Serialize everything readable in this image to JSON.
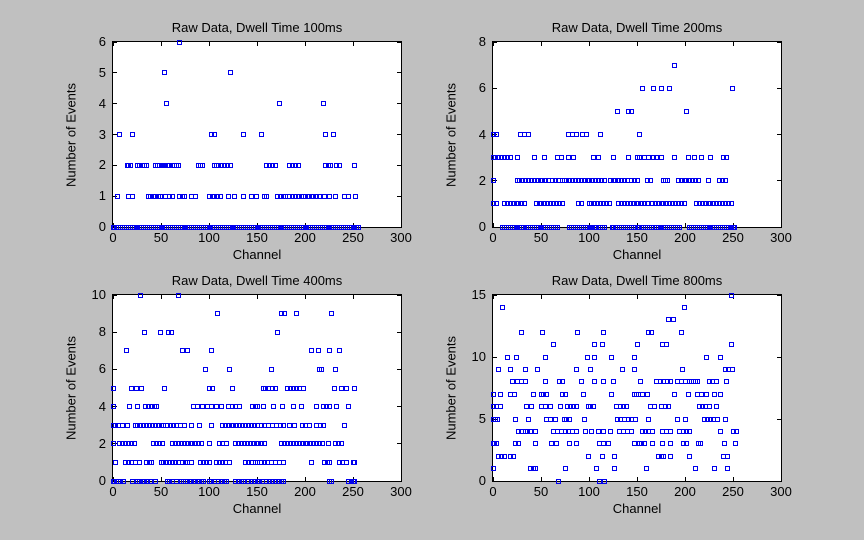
{
  "figure": {
    "background_color": "#c0c0c0",
    "plot_background": "#ffffff",
    "axis_color": "#000000",
    "marker_color": "#0000ee",
    "marker_shape": "open-square"
  },
  "chart_data": [
    {
      "type": "scatter",
      "title": "Raw Data, Dwell Time 100ms",
      "xlabel": "Channel",
      "ylabel": "Number of Events",
      "xlim": [
        0,
        300
      ],
      "ylim": [
        0,
        6
      ],
      "xticks": [
        0,
        50,
        100,
        150,
        200,
        250,
        300
      ],
      "yticks": [
        0,
        1,
        2,
        3,
        4,
        5,
        6
      ],
      "grid": false,
      "legend": null,
      "points_by_level": {
        "0": [
          0,
          2,
          4,
          6,
          8,
          10,
          12,
          14,
          16,
          18,
          20,
          22,
          24,
          26,
          28,
          30,
          32,
          34,
          36,
          38,
          40,
          42,
          44,
          46,
          48,
          50,
          52,
          54,
          56,
          58,
          60,
          62,
          64,
          66,
          68,
          70,
          72,
          74,
          76,
          78,
          80,
          82,
          84,
          86,
          88,
          90,
          92,
          94,
          96,
          98,
          100,
          102,
          104,
          106,
          108,
          110,
          112,
          114,
          116,
          118,
          120,
          122,
          124,
          126,
          128,
          130,
          132,
          134,
          136,
          138,
          140,
          142,
          144,
          146,
          148,
          150,
          152,
          154,
          156,
          158,
          160,
          162,
          164,
          166,
          168,
          170,
          172,
          174,
          176,
          178,
          180,
          182,
          184,
          186,
          188,
          190,
          192,
          194,
          196,
          198,
          200,
          202,
          204,
          206,
          208,
          210,
          212,
          214,
          216,
          218,
          220,
          222,
          224,
          226,
          228,
          230,
          232,
          234,
          236,
          238,
          240,
          242,
          244,
          246,
          248,
          250,
          252,
          254,
          256
        ],
        "1": [
          5,
          16,
          20,
          37,
          39,
          42,
          44,
          47,
          49,
          55,
          59,
          62,
          69,
          72,
          74,
          82,
          86,
          101,
          104,
          106,
          109,
          112,
          120,
          127,
          136,
          144,
          149,
          158,
          160,
          171,
          174,
          178,
          180,
          184,
          187,
          190,
          193,
          196,
          198,
          201,
          204,
          207,
          209,
          212,
          215,
          220,
          225,
          232,
          241,
          245,
          253
        ],
        "2": [
          15,
          16,
          18,
          25,
          28,
          31,
          33,
          35,
          44,
          46,
          48,
          50,
          52,
          54,
          57,
          59,
          62,
          64,
          66,
          68,
          89,
          91,
          93,
          106,
          108,
          110,
          113,
          116,
          119,
          122,
          160,
          163,
          166,
          169,
          184,
          187,
          190,
          193,
          221,
          224,
          227,
          233,
          236,
          252
        ],
        "3": [
          7,
          20,
          103,
          106,
          136,
          155,
          221,
          230
        ],
        "4": [
          56,
          173,
          219
        ],
        "5": [
          54,
          122
        ],
        "6": [
          69
        ]
      }
    },
    {
      "type": "scatter",
      "title": "Raw Data, Dwell Time 200ms",
      "xlabel": "Channel",
      "ylabel": "Number of Events",
      "xlim": [
        0,
        300
      ],
      "ylim": [
        0,
        8
      ],
      "xticks": [
        0,
        50,
        100,
        150,
        200,
        250,
        300
      ],
      "yticks": [
        0,
        2,
        4,
        6,
        8
      ],
      "grid": false,
      "legend": null,
      "points_by_level": {
        "0": [
          10,
          12,
          14,
          16,
          18,
          20,
          22,
          24,
          26,
          28,
          30,
          32,
          35,
          37,
          39,
          41,
          43,
          45,
          47,
          49,
          51,
          53,
          55,
          57,
          59,
          61,
          63,
          65,
          67,
          80,
          82,
          84,
          86,
          88,
          90,
          92,
          94,
          96,
          98,
          100,
          102,
          104,
          107,
          110,
          112,
          114,
          116,
          124,
          126,
          128,
          130,
          132,
          134,
          136,
          138,
          140,
          142,
          144,
          146,
          148,
          150,
          152,
          155,
          157,
          159,
          161,
          163,
          165,
          170,
          172,
          174,
          176,
          178,
          180,
          182,
          184,
          186,
          188,
          190,
          192,
          194,
          205,
          207,
          209,
          211,
          213,
          215,
          217,
          219,
          221,
          223,
          225,
          227,
          229,
          231,
          233,
          235,
          237,
          239,
          241,
          243,
          245,
          248,
          250,
          252
        ],
        "1": [
          1,
          4,
          12,
          15,
          18,
          21,
          24,
          27,
          30,
          33,
          45,
          48,
          51,
          54,
          57,
          60,
          63,
          66,
          69,
          72,
          89,
          92,
          100,
          103,
          106,
          109,
          112,
          115,
          118,
          121,
          131,
          134,
          137,
          140,
          143,
          146,
          149,
          152,
          155,
          158,
          161,
          166,
          169,
          172,
          175,
          178,
          181,
          184,
          187,
          190,
          193,
          196,
          199,
          212,
          215,
          218,
          221,
          224,
          227,
          230,
          233,
          236,
          239,
          242,
          245,
          248
        ],
        "2": [
          0,
          25,
          28,
          31,
          34,
          37,
          40,
          43,
          46,
          49,
          52,
          55,
          58,
          62,
          65,
          68,
          72,
          74,
          77,
          80,
          83,
          86,
          89,
          92,
          95,
          98,
          101,
          104,
          107,
          110,
          113,
          116,
          122,
          125,
          128,
          131,
          134,
          137,
          140,
          144,
          147,
          150,
          161,
          164,
          178,
          180,
          182,
          193,
          196,
          199,
          202,
          205,
          208,
          211,
          214,
          224,
          236,
          239,
          242
        ],
        "3": [
          0,
          3,
          6,
          9,
          12,
          15,
          18,
          26,
          43,
          54,
          67,
          71,
          79,
          84,
          105,
          110,
          125,
          141,
          150,
          153,
          158,
          162,
          167,
          170,
          175,
          189,
          204,
          210,
          217,
          227,
          240,
          243
        ],
        "4": [
          0,
          4,
          29,
          33,
          37,
          79,
          83,
          87,
          93,
          97,
          112,
          153
        ],
        "5": [
          130,
          141,
          144,
          202
        ],
        "6": [
          156,
          167,
          176,
          184,
          249
        ],
        "7": [
          189
        ]
      }
    },
    {
      "type": "scatter",
      "title": "Raw Data, Dwell Time 400ms",
      "xlabel": "Channel",
      "ylabel": "Number of Events",
      "xlim": [
        0,
        300
      ],
      "ylim": [
        0,
        10
      ],
      "xticks": [
        0,
        50,
        100,
        150,
        200,
        250,
        300
      ],
      "yticks": [
        0,
        2,
        4,
        6,
        8,
        10
      ],
      "grid": false,
      "legend": null,
      "points_by_level": {
        "0": [
          0,
          2,
          4,
          6,
          8,
          11,
          20,
          26,
          28,
          31,
          33,
          36,
          39,
          44,
          57,
          59,
          62,
          66,
          71,
          73,
          75,
          78,
          81,
          84,
          86,
          89,
          92,
          94,
          100,
          103,
          106,
          110,
          113,
          116,
          118,
          128,
          131,
          134,
          136,
          141,
          144,
          147,
          150,
          153,
          156,
          160,
          163,
          166,
          169,
          172,
          175,
          178,
          226,
          228,
          245,
          248,
          250,
          252
        ],
        "1": [
          3,
          13,
          16,
          19,
          23,
          28,
          35,
          38,
          40,
          50,
          53,
          56,
          59,
          62,
          65,
          68,
          72,
          75,
          78,
          82,
          91,
          94,
          97,
          100,
          108,
          111,
          114,
          117,
          121,
          138,
          141,
          144,
          148,
          151,
          155,
          158,
          161,
          165,
          169,
          173,
          178,
          207,
          220,
          223,
          226,
          236,
          239,
          243,
          250,
          252
        ],
        "2": [
          0,
          7,
          10,
          13,
          16,
          19,
          22,
          42,
          45,
          48,
          52,
          62,
          65,
          68,
          71,
          74,
          78,
          81,
          83,
          86,
          89,
          92,
          100,
          111,
          114,
          118,
          128,
          131,
          134,
          137,
          140,
          143,
          146,
          149,
          152,
          155,
          158,
          176,
          179,
          182,
          185,
          188,
          191,
          194,
          197,
          200,
          203,
          206,
          209,
          212,
          215,
          218,
          224,
          232,
          235,
          238
        ],
        "3": [
          0,
          3,
          6,
          10,
          15,
          23,
          26,
          29,
          32,
          35,
          38,
          41,
          44,
          47,
          50,
          53,
          57,
          60,
          63,
          66,
          70,
          74,
          82,
          90,
          103,
          114,
          117,
          120,
          123,
          126,
          129,
          132,
          135,
          138,
          141,
          144,
          147,
          151,
          155,
          158,
          162,
          166,
          170,
          174,
          178,
          184,
          189,
          197,
          201,
          205,
          212,
          216,
          219,
          241
        ],
        "4": [
          1,
          17,
          25,
          34,
          37,
          40,
          43,
          45,
          84,
          88,
          93,
          98,
          103,
          108,
          113,
          120,
          124,
          128,
          132,
          145,
          148,
          151,
          157,
          167,
          177,
          188,
          196,
          212,
          219,
          222,
          226,
          233,
          245
        ],
        "5": [
          0,
          19,
          24,
          30,
          54,
          100,
          104,
          124,
          157,
          159,
          162,
          166,
          169,
          182,
          185,
          188,
          191,
          194,
          198,
          231,
          238,
          243,
          252
        ],
        "6": [
          96,
          121,
          165,
          215,
          217,
          232
        ],
        "7": [
          14,
          72,
          78,
          103,
          207,
          214,
          226,
          236
        ],
        "8": [
          33,
          49,
          58,
          61,
          171
        ],
        "9": [
          109,
          176,
          179,
          191,
          228
        ],
        "10": [
          29,
          68
        ]
      }
    },
    {
      "type": "scatter",
      "title": "Raw Data, Dwell Time 800ms",
      "xlabel": "Channel",
      "ylabel": "Number of Events",
      "xlim": [
        0,
        300
      ],
      "ylim": [
        0,
        15
      ],
      "xticks": [
        0,
        50,
        100,
        150,
        200,
        250,
        300
      ],
      "yticks": [
        0,
        5,
        10,
        15
      ],
      "grid": false,
      "legend": null,
      "points_by_level": {
        "0": [
          68,
          111,
          116
        ],
        "1": [
          0,
          39,
          42,
          44,
          75,
          108,
          127,
          160,
          211,
          231,
          244
        ],
        "2": [
          6,
          9,
          12,
          18,
          21,
          99,
          114,
          127,
          172,
          175,
          178,
          185,
          205,
          240,
          244
        ],
        "3": [
          0,
          2,
          4,
          23,
          27,
          44,
          61,
          66,
          80,
          87,
          111,
          115,
          120,
          147,
          153,
          155,
          158,
          166,
          177,
          185,
          198,
          202,
          214,
          216,
          241,
          253
        ],
        "4": [
          27,
          30,
          34,
          36,
          39,
          44,
          63,
          67,
          71,
          75,
          79,
          83,
          87,
          96,
          103,
          110,
          115,
          122,
          132,
          136,
          140,
          144,
          156,
          159,
          162,
          166,
          177,
          181,
          185,
          194,
          198,
          202,
          205,
          237,
          251,
          254
        ],
        "5": [
          0,
          3,
          5,
          23,
          37,
          56,
          60,
          65,
          74,
          77,
          80,
          95,
          130,
          133,
          137,
          141,
          144,
          148,
          162,
          192,
          200,
          220,
          223,
          227,
          230,
          234,
          242
        ],
        "6": [
          0,
          4,
          8,
          35,
          40,
          51,
          55,
          60,
          70,
          78,
          81,
          84,
          87,
          99,
          102,
          105,
          129,
          133,
          136,
          139,
          164,
          168,
          175,
          180,
          183,
          215,
          218,
          221,
          225,
          233
        ],
        "7": [
          0,
          8,
          18,
          22,
          42,
          50,
          53,
          56,
          72,
          75,
          94,
          123,
          147,
          149,
          152,
          156,
          161,
          189,
          204,
          213,
          217,
          222,
          231,
          237
        ],
        "8": [
          20,
          26,
          30,
          34,
          55,
          69,
          72,
          92,
          106,
          115,
          125,
          154,
          170,
          174,
          178,
          182,
          185,
          192,
          196,
          200,
          205,
          207,
          209,
          211,
          213,
          225,
          229,
          233,
          243
        ],
        "9": [
          6,
          18,
          34,
          46,
          87,
          102,
          135,
          147,
          197,
          242,
          245,
          249
        ],
        "10": [
          15,
          24,
          55,
          98,
          106,
          123,
          147,
          222,
          237
        ],
        "11": [
          63,
          106,
          114,
          150,
          177,
          181,
          248
        ],
        "12": [
          30,
          52,
          88,
          115,
          162,
          165,
          196
        ],
        "13": [
          183,
          188
        ],
        "14": [
          10,
          199
        ],
        "15": [
          248
        ]
      }
    }
  ]
}
